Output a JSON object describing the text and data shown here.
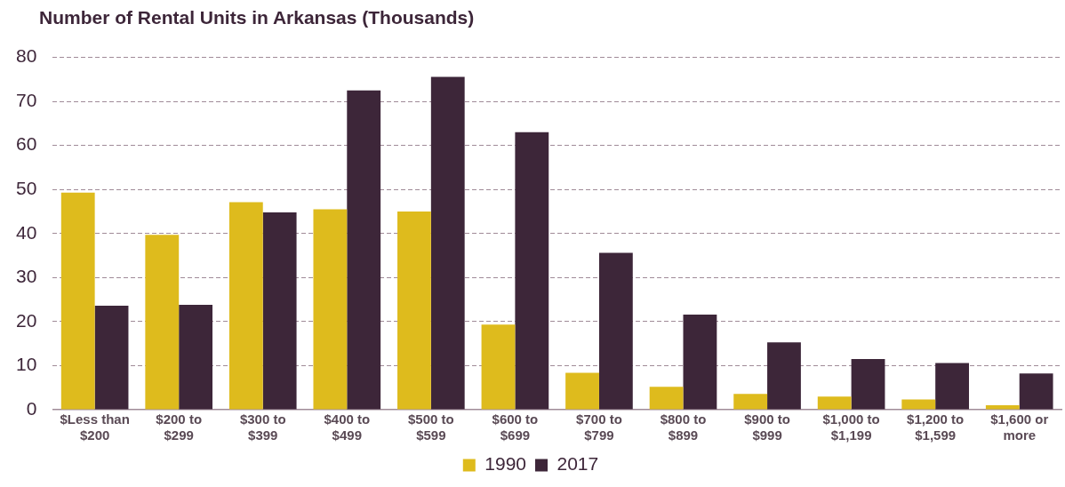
{
  "chart_data": {
    "type": "bar",
    "title": "Number of Rental Units in Arkansas (Thousands)",
    "categories": [
      "$Less than $200",
      "$200 to $299",
      "$300 to $399",
      "$400 to $499",
      "$500 to $599",
      "$600 to $699",
      "$700 to $799",
      "$800 to $899",
      "$900 to $999",
      "$1,000 to $1,199",
      "$1,200 to $1,599",
      "$1,600 or more"
    ],
    "series": [
      {
        "name": "1990",
        "color": "#debb1d",
        "values": [
          49.3,
          39.7,
          47.1,
          45.5,
          45.0,
          19.3,
          8.4,
          5.2,
          3.6,
          3.0,
          2.3,
          1.0
        ]
      },
      {
        "name": "2017",
        "color": "#3d2639",
        "values": [
          23.6,
          23.8,
          44.8,
          72.5,
          75.6,
          63.0,
          35.6,
          21.6,
          15.3,
          11.5,
          10.6,
          8.2
        ]
      }
    ],
    "ylim": [
      0,
      80
    ],
    "yticks": [
      0,
      10,
      20,
      30,
      40,
      50,
      60,
      70,
      80
    ],
    "grid": "y",
    "legend": "bottom"
  }
}
